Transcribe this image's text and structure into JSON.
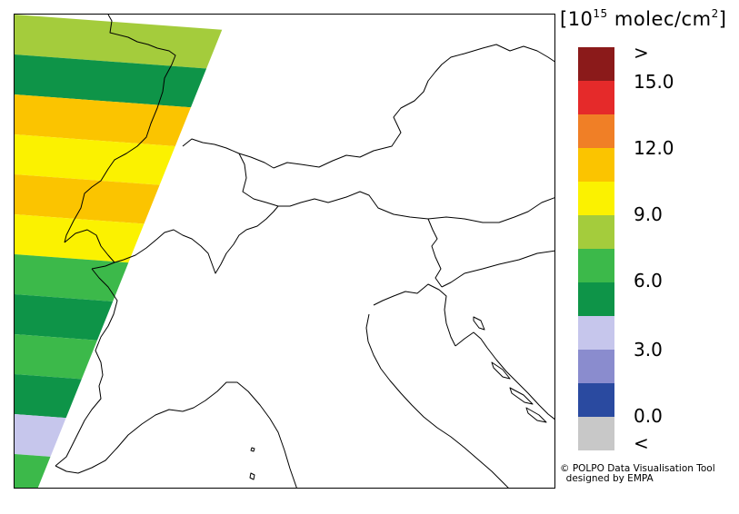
{
  "legend": {
    "title_open": "[10",
    "title_exp": "15",
    "title_mid": " molec/cm",
    "title_exp2": "2",
    "title_close": "]",
    "colors": [
      "#8b1a1a",
      "#e52a2a",
      "#f07f26",
      "#fbc400",
      "#fbf200",
      "#a4cc3c",
      "#3cb94a",
      "#0e9448",
      "#c6c6ec",
      "#8a8cce",
      "#2a4aa0",
      "#c8c8c8"
    ],
    "labels": [
      ">",
      "15.0",
      "12.0",
      "9.0",
      "6.0",
      "3.0",
      "0.0",
      "<"
    ]
  },
  "credit": {
    "line1": "© POLPO Data Visualisation Tool",
    "line2": "  designed by EMPA"
  },
  "swath_bands": [
    {
      "color": "#a4cc3c"
    },
    {
      "color": "#0e9448"
    },
    {
      "color": "#fbc400"
    },
    {
      "color": "#fbf200"
    },
    {
      "color": "#fbc400"
    },
    {
      "color": "#fbf200"
    },
    {
      "color": "#3cb94a"
    },
    {
      "color": "#0e9448"
    },
    {
      "color": "#3cb94a"
    },
    {
      "color": "#0e9448"
    },
    {
      "color": "#c6c6ec"
    },
    {
      "color": "#3cb94a"
    }
  ]
}
